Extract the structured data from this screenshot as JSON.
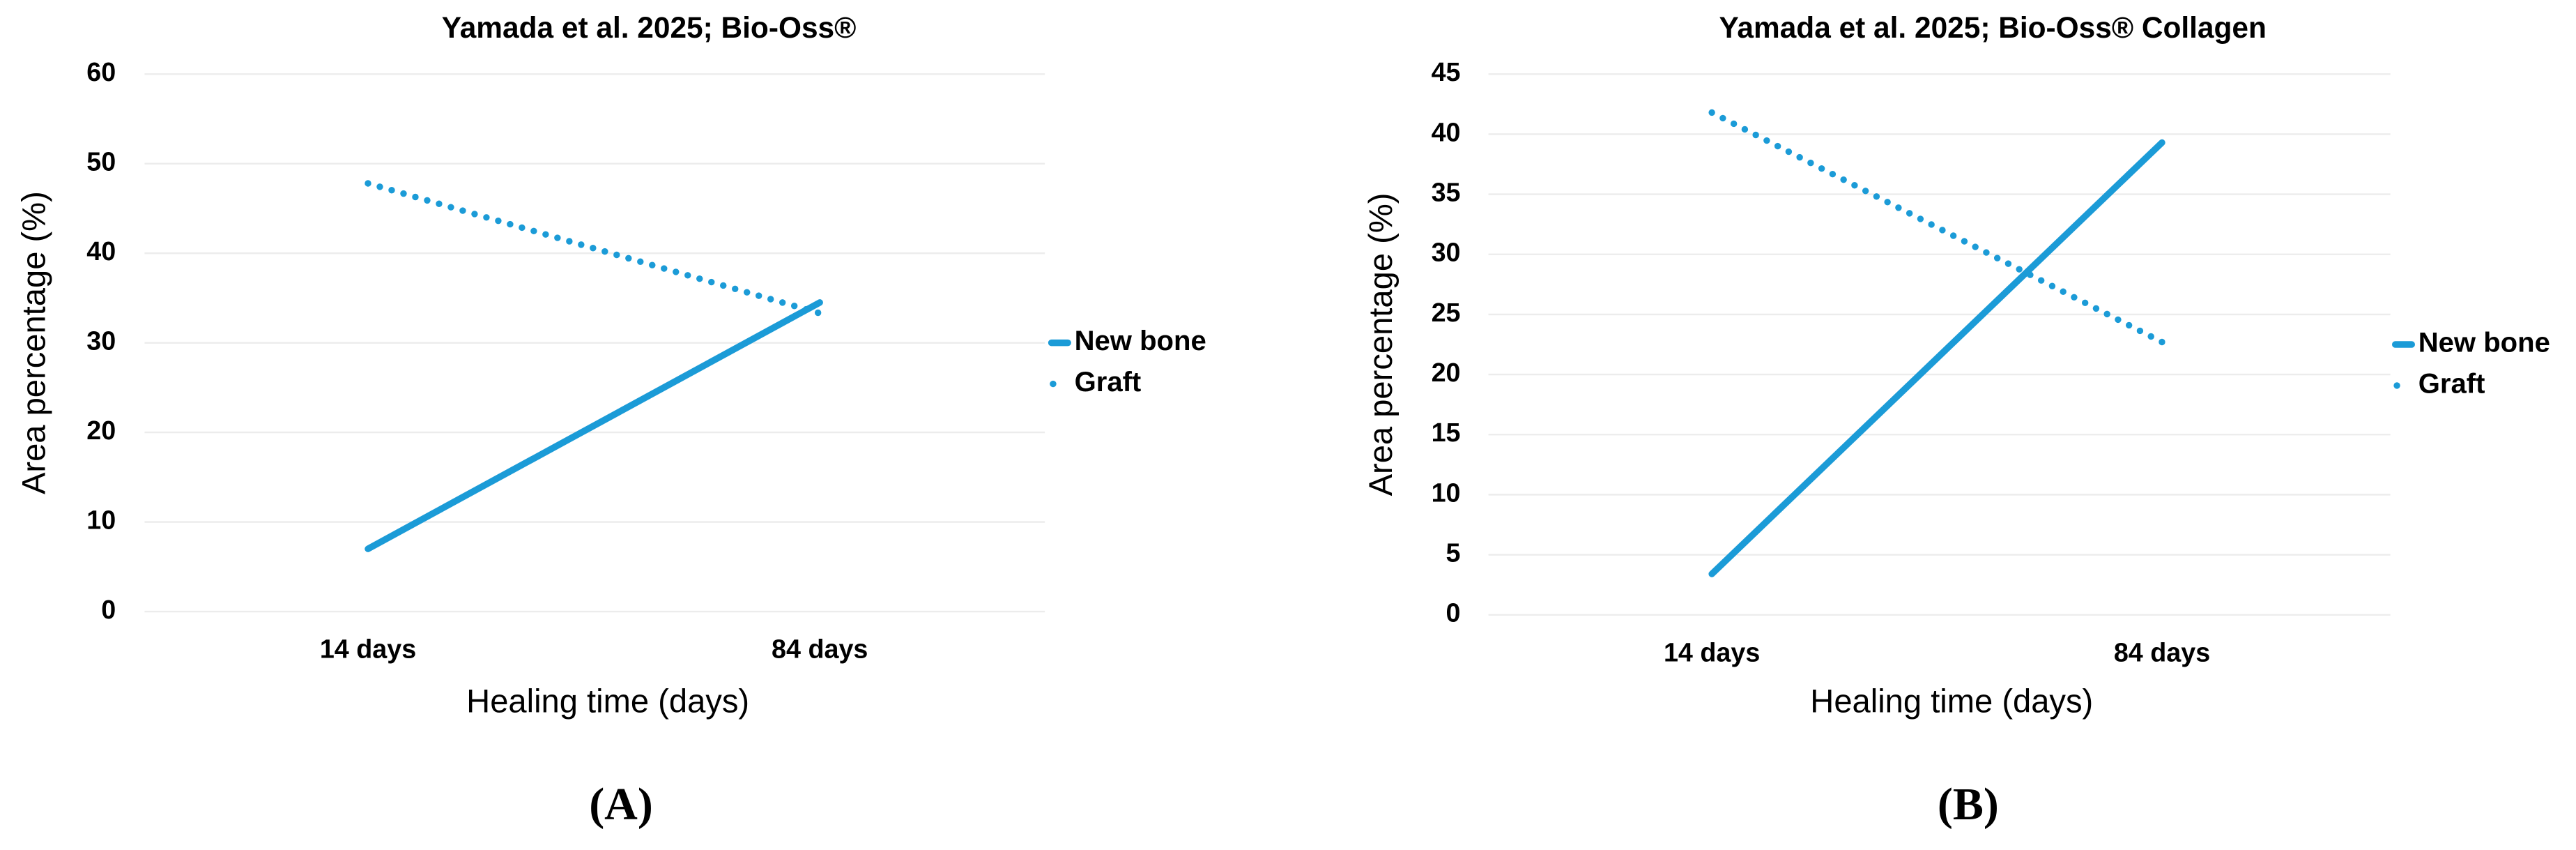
{
  "chart_data": [
    {
      "type": "line",
      "title": "Yamada et al. 2025; Bio-Oss®",
      "xlabel": "Healing time (days)",
      "ylabel": "Area percentage (%)",
      "categories": [
        "14 days",
        "84 days"
      ],
      "series": [
        {
          "name": "New bone",
          "color": "#1b9bd7",
          "style": "solid",
          "values": [
            7,
            34.5
          ]
        },
        {
          "name": "Graft",
          "color": "#1b9bd7",
          "style": "dotted",
          "values": [
            47.8,
            33.3
          ]
        }
      ],
      "ylim": [
        0,
        60
      ],
      "yticks": [
        0,
        10,
        20,
        30,
        40,
        50,
        60
      ],
      "grid": true,
      "legend": "right",
      "panel_label": "(A)"
    },
    {
      "type": "line",
      "title": "Yamada et al. 2025; Bio-Oss® Collagen",
      "xlabel": "Healing time (days)",
      "ylabel": "Area percentage (%)",
      "categories": [
        "14 days",
        "84 days"
      ],
      "series": [
        {
          "name": "New bone",
          "color": "#1b9bd7",
          "style": "solid",
          "values": [
            3.4,
            39.3
          ]
        },
        {
          "name": "Graft",
          "color": "#1b9bd7",
          "style": "dotted",
          "values": [
            41.8,
            22.7
          ]
        }
      ],
      "ylim": [
        0,
        45
      ],
      "yticks": [
        0,
        5,
        10,
        15,
        20,
        25,
        30,
        35,
        40,
        45
      ],
      "grid": true,
      "legend": "right",
      "panel_label": "(B)"
    }
  ]
}
